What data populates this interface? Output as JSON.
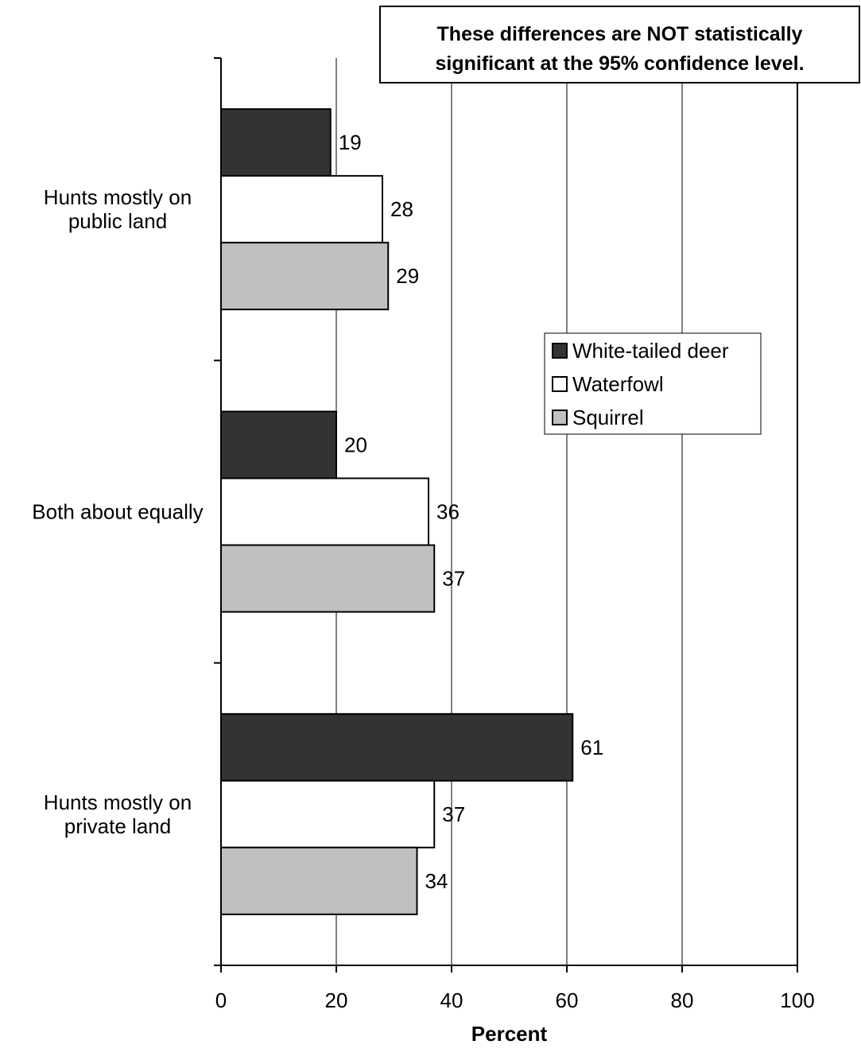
{
  "chart_data": {
    "type": "bar",
    "orientation": "horizontal",
    "categories": [
      "Hunts mostly on public land",
      "Both about equally",
      "Hunts mostly on private land"
    ],
    "category_label_lines": [
      [
        "Hunts mostly on",
        "public land"
      ],
      [
        "Both about equally"
      ],
      [
        "Hunts mostly on",
        "private land"
      ]
    ],
    "series": [
      {
        "name": "White-tailed deer",
        "values": [
          19,
          20,
          61
        ],
        "color": "#333333"
      },
      {
        "name": "Waterfowl",
        "values": [
          28,
          36,
          37
        ],
        "color": "#ffffff"
      },
      {
        "name": "Squirrel",
        "values": [
          29,
          37,
          34
        ],
        "color": "#c0c0c0"
      }
    ],
    "xlabel": "Percent",
    "xlim": [
      0,
      100
    ],
    "xticks": [
      0,
      20,
      40,
      60,
      80,
      100
    ],
    "grid": true,
    "legend_position": "center-right",
    "annotation": [
      "These differences are NOT statistically",
      "significant at the 95% confidence level."
    ]
  }
}
